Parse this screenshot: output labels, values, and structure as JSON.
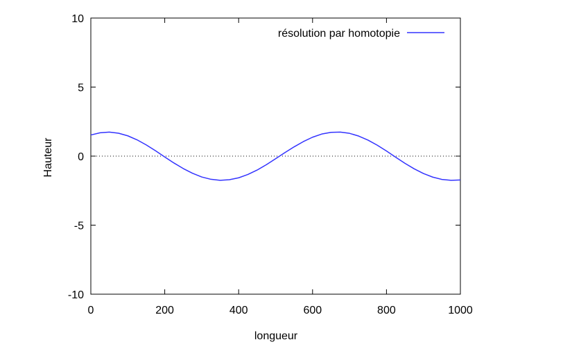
{
  "chart_data": {
    "type": "line",
    "title": "",
    "xlabel": "longueur",
    "ylabel": "Hauteur",
    "xlim": [
      0,
      1000
    ],
    "ylim": [
      -10,
      10
    ],
    "xticks": [
      0,
      200,
      400,
      600,
      800,
      1000
    ],
    "yticks": [
      -10,
      -5,
      0,
      5,
      10
    ],
    "xtick_labels": [
      "0",
      "200",
      "400",
      "600",
      "800",
      "1000"
    ],
    "ytick_labels": [
      "-10",
      "-5",
      "0",
      "5",
      "10"
    ],
    "grid": false,
    "legend_position": "top-right",
    "zero_line": "dotted",
    "series": [
      {
        "name": "résolution par homotopie",
        "color": "#3333ff",
        "x": [
          0,
          25,
          50,
          75,
          100,
          125,
          150,
          175,
          200,
          225,
          250,
          275,
          300,
          325,
          350,
          375,
          400,
          425,
          450,
          475,
          500,
          525,
          550,
          575,
          600,
          625,
          650,
          675,
          700,
          725,
          750,
          775,
          800,
          825,
          850,
          875,
          900,
          925,
          950,
          975,
          1000
        ],
        "y": [
          1.53,
          1.69,
          1.74,
          1.66,
          1.47,
          1.18,
          0.81,
          0.39,
          -0.06,
          -0.5,
          -0.9,
          -1.24,
          -1.51,
          -1.68,
          -1.75,
          -1.71,
          -1.57,
          -1.33,
          -1.01,
          -0.62,
          -0.19,
          0.25,
          0.67,
          1.05,
          1.37,
          1.6,
          1.72,
          1.74,
          1.65,
          1.45,
          1.16,
          0.79,
          0.37,
          -0.08,
          -0.52,
          -0.92,
          -1.26,
          -1.52,
          -1.69,
          -1.75,
          -1.73
        ]
      }
    ]
  }
}
